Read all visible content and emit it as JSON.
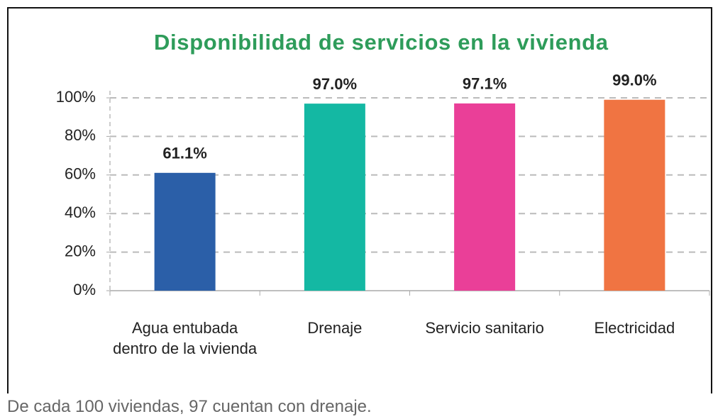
{
  "chart_data": {
    "type": "bar",
    "title": "Disponibilidad de servicios en la vivienda",
    "categories": [
      "Agua entubada dentro de la vivienda",
      "Drenaje",
      "Servicio sanitario",
      "Electricidad"
    ],
    "values": [
      61.1,
      97.0,
      97.1,
      99.0
    ],
    "value_labels": [
      "61.1%",
      "97.0%",
      "97.1%",
      "99.0%"
    ],
    "colors": [
      "#2b5fa8",
      "#14b8a3",
      "#ea3f98",
      "#f07442"
    ],
    "ylim": [
      0,
      100
    ],
    "yticks": [
      {
        "value": 0,
        "label": "0%"
      },
      {
        "value": 20,
        "label": "20%"
      },
      {
        "value": 40,
        "label": "40%"
      },
      {
        "value": 60,
        "label": "60%"
      },
      {
        "value": 80,
        "label": "80%"
      },
      {
        "value": 100,
        "label": "100%"
      }
    ],
    "grid": true,
    "note": "De cada 100 viviendas, 97 cuentan con drenaje."
  }
}
